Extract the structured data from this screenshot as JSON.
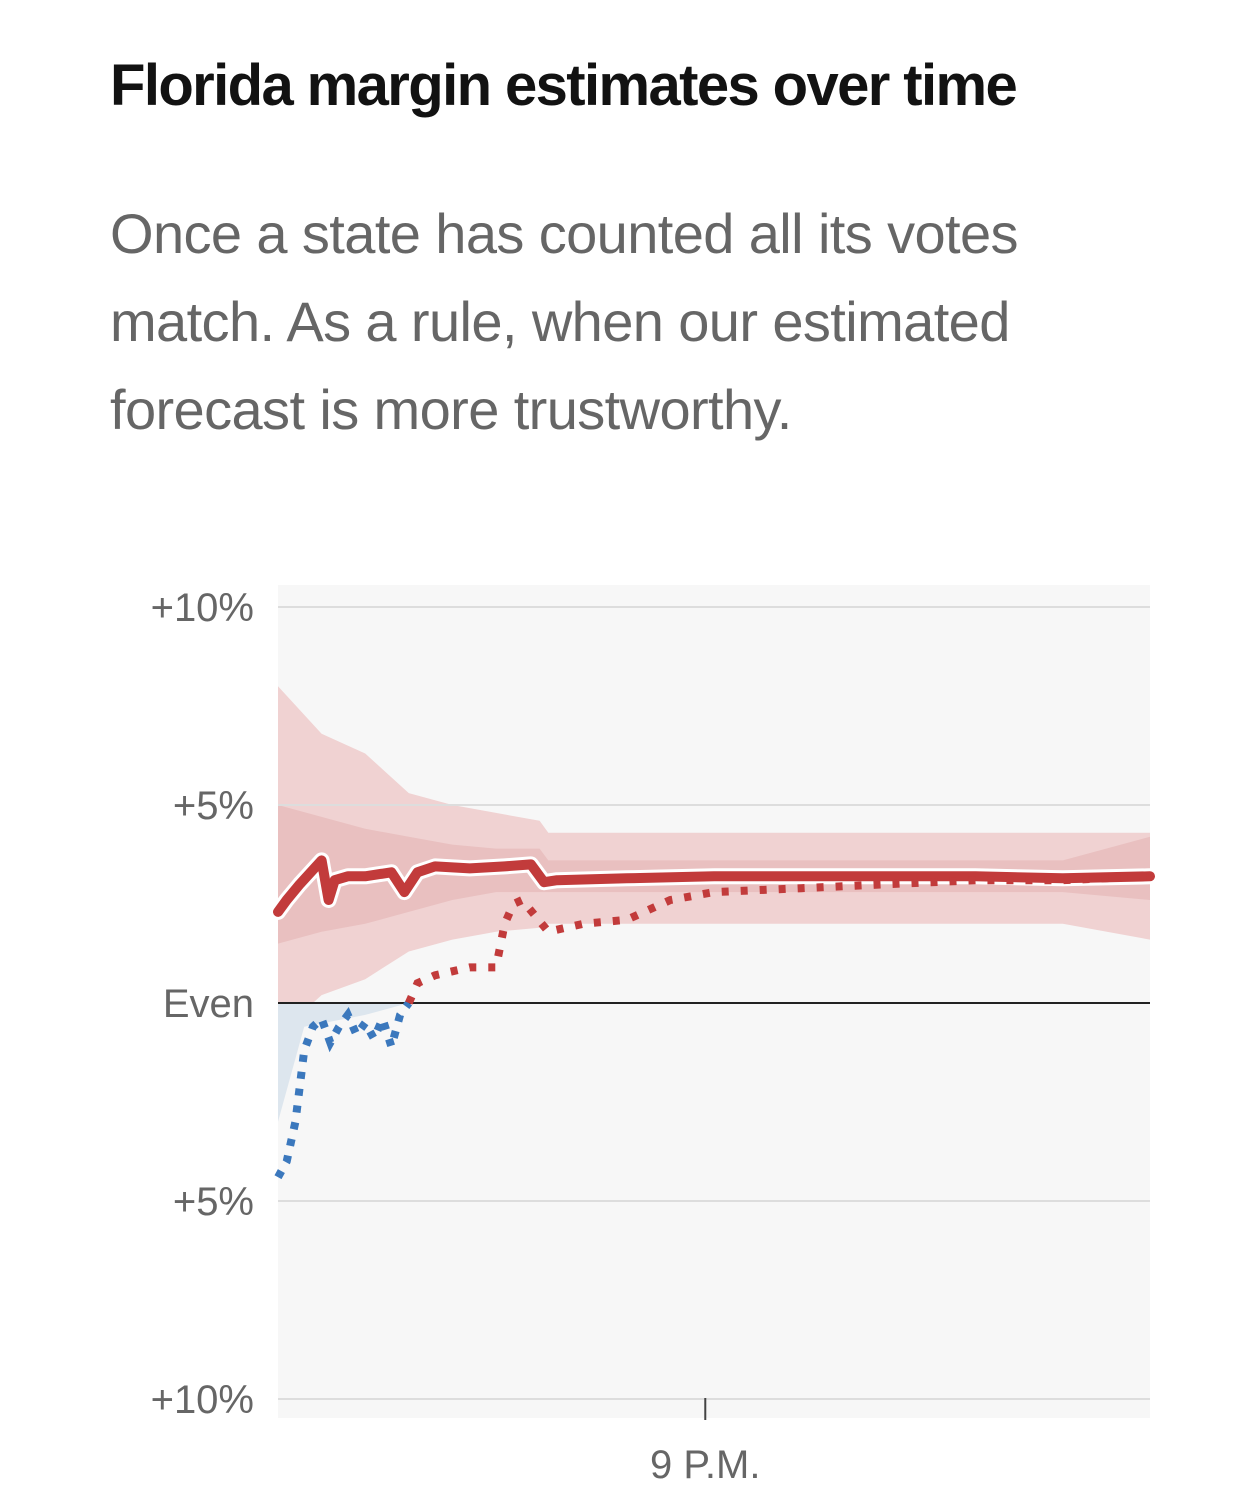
{
  "title": "Florida margin estimates over time",
  "subtitle_lines": [
    "Once a state has counted all its votes",
    "match. As a rule, when our estimated",
    "forecast is more trustworthy."
  ],
  "colors": {
    "rep": "#c23b3b",
    "dem": "#3b78bd",
    "band_outer": "#f0d2d2",
    "band_inner": "#e9c0c0",
    "band_dem": "#dde6ee",
    "plot_bg": "#f7f7f7",
    "grid": "#dddddd",
    "zero": "#222222"
  },
  "chart_data": {
    "type": "line",
    "title": "Florida margin estimates over time",
    "ylim": [
      -10,
      10
    ],
    "y_ticks": [
      {
        "value": 10,
        "label": "+10%"
      },
      {
        "value": 5,
        "label": "+5%"
      },
      {
        "value": 0,
        "label": "Even"
      },
      {
        "value": -5,
        "label": "+5%"
      },
      {
        "value": -10,
        "label": "+10%"
      }
    ],
    "x_ticks": [
      {
        "value": 0.49,
        "label": "9 P.M."
      }
    ],
    "series": [
      {
        "style": "solid",
        "x": [
          0,
          0.01,
          0.025,
          0.05,
          0.058,
          0.065,
          0.08,
          0.1,
          0.13,
          0.145,
          0.16,
          0.18,
          0.22,
          0.26,
          0.29,
          0.305,
          0.32,
          0.4,
          0.5,
          0.6,
          0.7,
          0.8,
          0.9,
          1.0
        ],
        "values": [
          2.3,
          2.6,
          3.0,
          3.6,
          2.6,
          3.1,
          3.2,
          3.2,
          3.3,
          2.8,
          3.3,
          3.45,
          3.4,
          3.45,
          3.5,
          3.05,
          3.1,
          3.15,
          3.2,
          3.2,
          3.2,
          3.2,
          3.15,
          3.2
        ]
      },
      {
        "style": "dotted",
        "x": [
          0,
          0.01,
          0.02,
          0.03,
          0.04,
          0.05,
          0.06,
          0.07,
          0.08,
          0.09,
          0.1,
          0.11,
          0.12,
          0.13,
          0.14,
          0.15,
          0.16,
          0.18,
          0.2,
          0.22,
          0.25,
          0.26,
          0.27,
          0.28,
          0.31,
          0.35,
          0.4,
          0.45,
          0.5,
          0.6,
          0.7,
          0.8,
          0.9,
          1.0
        ],
        "values": [
          -4.4,
          -4.0,
          -3.0,
          -1.2,
          -0.6,
          -0.4,
          -1.0,
          -0.6,
          -0.3,
          -0.8,
          -0.5,
          -0.9,
          -0.4,
          -1.1,
          -0.3,
          0.0,
          0.5,
          0.7,
          0.8,
          0.9,
          0.9,
          2.0,
          2.5,
          2.6,
          1.8,
          2.0,
          2.1,
          2.6,
          2.8,
          2.9,
          3.0,
          3.1,
          3.1,
          3.2
        ]
      }
    ],
    "bands": {
      "x": [
        0,
        0.05,
        0.1,
        0.15,
        0.2,
        0.25,
        0.3,
        0.31,
        0.4,
        0.5,
        0.6,
        0.7,
        0.8,
        0.9,
        1.0
      ],
      "outer_upper": [
        8.0,
        6.8,
        6.3,
        5.3,
        5.0,
        4.8,
        4.6,
        4.3,
        4.3,
        4.3,
        4.3,
        4.3,
        4.3,
        4.3,
        4.3
      ],
      "outer_lower": [
        -0.8,
        0.2,
        0.6,
        1.3,
        1.6,
        1.8,
        1.9,
        2.0,
        2.0,
        2.0,
        2.0,
        2.0,
        2.0,
        2.0,
        1.6
      ],
      "inner_upper": [
        5.0,
        4.7,
        4.4,
        4.2,
        4.0,
        3.9,
        3.9,
        3.6,
        3.6,
        3.6,
        3.6,
        3.6,
        3.6,
        3.6,
        4.2
      ],
      "inner_lower": [
        1.5,
        1.8,
        2.0,
        2.3,
        2.6,
        2.8,
        2.8,
        2.8,
        2.8,
        2.8,
        2.8,
        2.8,
        2.8,
        2.8,
        2.6
      ],
      "dem_lower": [
        -3.0,
        -0.6,
        -0.3,
        0.0
      ]
    }
  }
}
